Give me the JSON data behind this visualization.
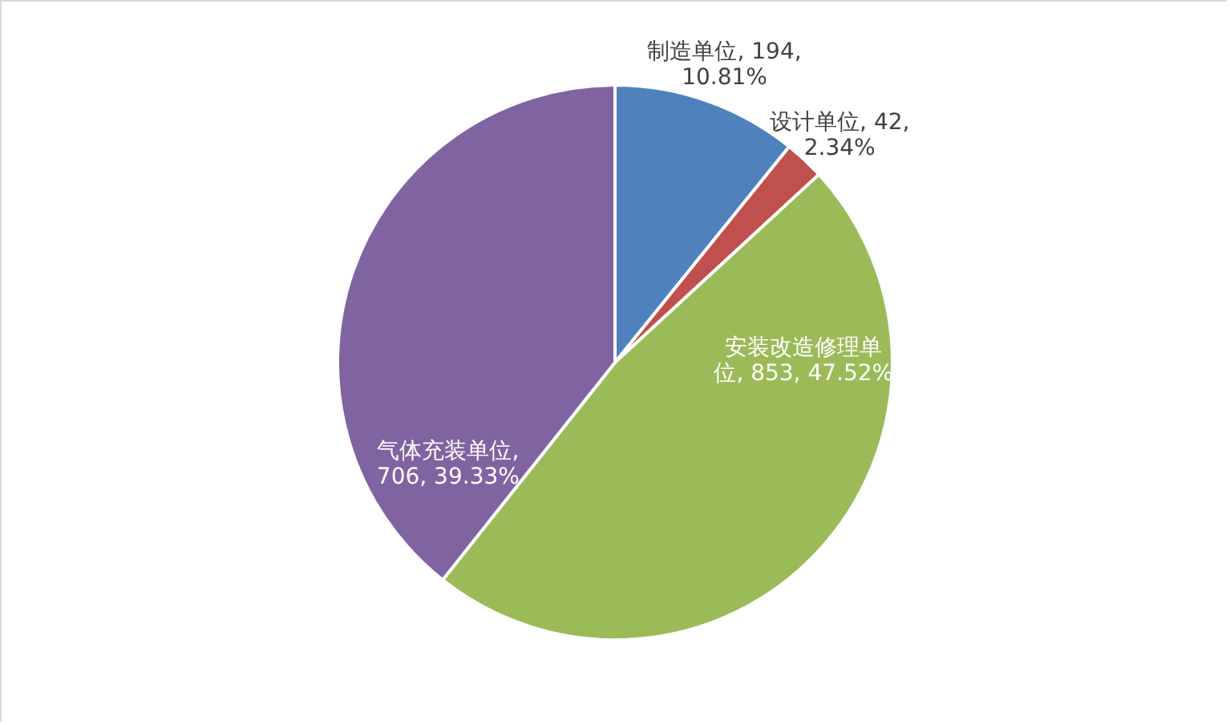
{
  "chart_data": {
    "type": "pie",
    "categories": [
      "制造单位",
      "设计单位",
      "安装改造修理单位",
      "气体充装单位"
    ],
    "values": [
      194,
      42,
      853,
      706
    ],
    "colors": [
      "#4f81bd",
      "#c0504d",
      "#9bbb59",
      "#8064a2"
    ],
    "value_labels": [
      ", 194, 10.81%",
      ", 42, 2.34%",
      ", 853, 47.52%",
      ", 706, 39.33%"
    ]
  }
}
